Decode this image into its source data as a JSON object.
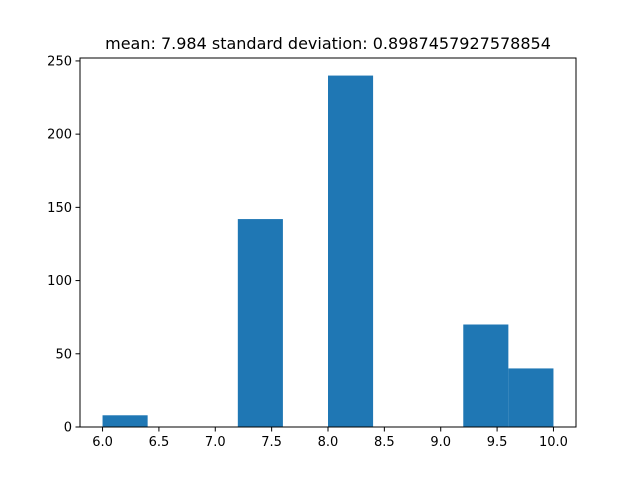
{
  "chart_data": {
    "type": "bar",
    "title": "mean: 7.984 standard deviation: 0.8987457927578854",
    "xlabel": "",
    "ylabel": "",
    "xlim": [
      5.8,
      10.2
    ],
    "ylim": [
      0,
      252
    ],
    "bar_width": 0.4,
    "bar_color": "#1f77b4",
    "grid": false,
    "bars": [
      {
        "x": 6.0,
        "value": 8
      },
      {
        "x": 6.4,
        "value": 0
      },
      {
        "x": 6.8,
        "value": 0
      },
      {
        "x": 7.2,
        "value": 142
      },
      {
        "x": 7.6,
        "value": 0
      },
      {
        "x": 8.0,
        "value": 240
      },
      {
        "x": 8.4,
        "value": 0
      },
      {
        "x": 8.8,
        "value": 0
      },
      {
        "x": 9.2,
        "value": 70
      },
      {
        "x": 9.6,
        "value": 40
      }
    ],
    "x_ticks": [
      {
        "value": 6.0,
        "label": "6.0"
      },
      {
        "value": 6.5,
        "label": "6.5"
      },
      {
        "value": 7.0,
        "label": "7.0"
      },
      {
        "value": 7.5,
        "label": "7.5"
      },
      {
        "value": 8.0,
        "label": "8.0"
      },
      {
        "value": 8.5,
        "label": "8.5"
      },
      {
        "value": 9.0,
        "label": "9.0"
      },
      {
        "value": 9.5,
        "label": "9.5"
      },
      {
        "value": 10.0,
        "label": "10.0"
      }
    ],
    "y_ticks": [
      {
        "value": 0,
        "label": "0"
      },
      {
        "value": 50,
        "label": "50"
      },
      {
        "value": 100,
        "label": "100"
      },
      {
        "value": 150,
        "label": "150"
      },
      {
        "value": 200,
        "label": "200"
      },
      {
        "value": 250,
        "label": "250"
      }
    ]
  }
}
